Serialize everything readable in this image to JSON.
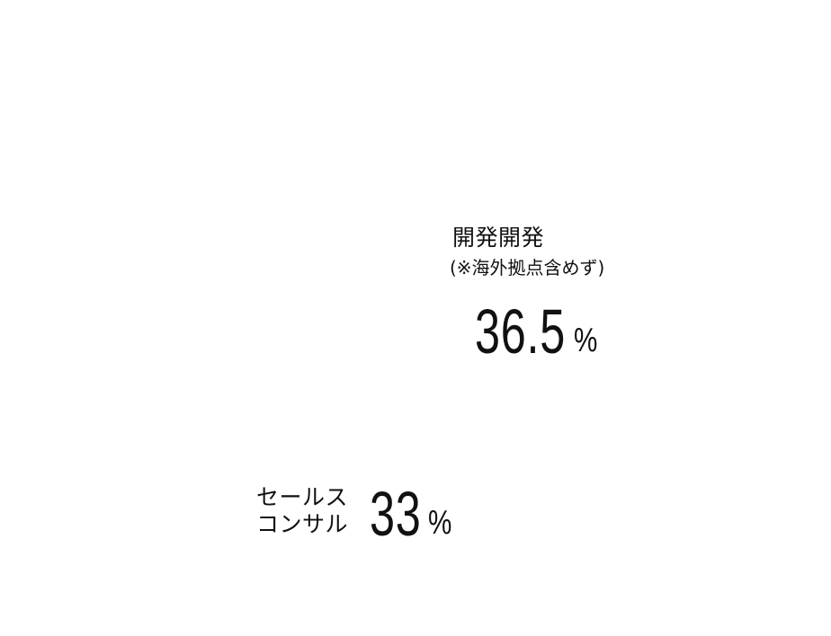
{
  "items": [
    {
      "label": [
        "開発開発",
        "(※海外拠点含めず)"
      ],
      "value": 36.5,
      "unit": "%"
    },
    {
      "label": [
        "セールス",
        "コンサル"
      ],
      "value": 33,
      "unit": "%"
    }
  ]
}
